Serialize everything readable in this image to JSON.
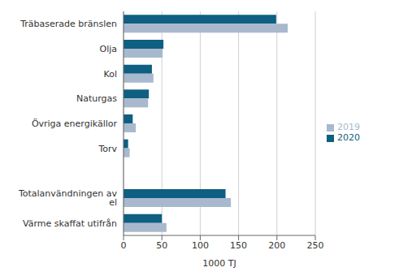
{
  "chart_data": {
    "type": "bar",
    "orientation": "horizontal",
    "categories": [
      "Träbaserade bränslen",
      "Olja",
      "Kol",
      "Naturgas",
      "Övriga energikällor",
      "Torv",
      null,
      "Totalanvändningen av el",
      "Värme skaffat utifrån"
    ],
    "series": [
      {
        "name": "2020",
        "color": "#0e5f82",
        "values": [
          199,
          52,
          37,
          33,
          12,
          6,
          null,
          133,
          50
        ]
      },
      {
        "name": "2019",
        "color": "#a8b9cd",
        "values": [
          214,
          51,
          39,
          32,
          16,
          8,
          null,
          140,
          56
        ]
      }
    ],
    "xlabel": "1000 TJ",
    "xlim": [
      0,
      250
    ],
    "xticks": [
      0,
      50,
      100,
      150,
      200,
      250
    ],
    "grid": true,
    "legend": "right"
  }
}
